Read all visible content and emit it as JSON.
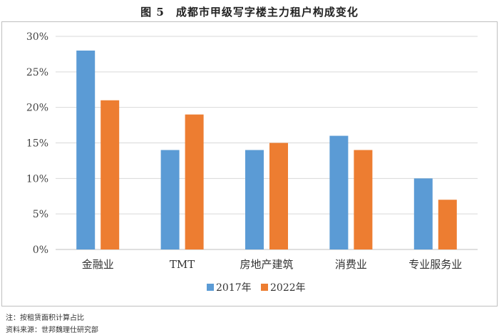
{
  "figure_title": "图 5　成都市甲级写字楼主力租户构成变化",
  "notes": {
    "line1": "注：按租赁面积计算占比",
    "line2": "资料来源：世邦魏理仕研究部"
  },
  "chart_data": {
    "type": "bar",
    "title": "",
    "xlabel": "",
    "ylabel": "",
    "categories": [
      "金融业",
      "TMT",
      "房地产建筑",
      "消费业",
      "专业服务业"
    ],
    "series": [
      {
        "name": "2017年",
        "color": "#5b9bd5",
        "values": [
          28,
          14,
          14,
          16,
          10
        ]
      },
      {
        "name": "2022年",
        "color": "#ed7d31",
        "values": [
          21,
          19,
          15,
          14,
          7
        ]
      }
    ],
    "ylim": [
      0,
      30
    ],
    "yticks": [
      "0%",
      "5%",
      "10%",
      "15%",
      "20%",
      "25%",
      "30%"
    ],
    "ytick_values": [
      0,
      5,
      10,
      15,
      20,
      25,
      30
    ],
    "grid": true,
    "legend": "bottom"
  }
}
